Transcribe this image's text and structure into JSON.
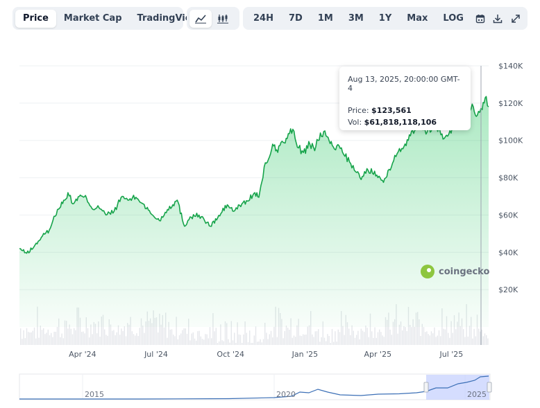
{
  "toolbar": {
    "view_tabs": [
      "Price",
      "Market Cap",
      "TradingView"
    ],
    "active_view": "Price",
    "chart_type_icons": [
      "line-chart-icon",
      "candlestick-icon"
    ],
    "ranges": [
      "24H",
      "7D",
      "1M",
      "3M",
      "1Y",
      "Max"
    ],
    "log_label": "LOG",
    "action_icons": [
      "calendar-icon",
      "download-icon",
      "fullscreen-icon"
    ]
  },
  "tooltip": {
    "date": "Aug 13, 2025, 20:00:00 GMT-4",
    "price_label": "Price:",
    "price_value": "$123,561",
    "vol_label": "Vol:",
    "vol_value": "$61,818,118,106"
  },
  "watermark": {
    "text": "coingecko"
  },
  "colors": {
    "line": "#16a34a",
    "fill": "#22c55e",
    "accent_range": "#c7d2fe",
    "navigator_line": "#3b6fb6"
  },
  "chart_data": {
    "type": "area",
    "ylim": [
      0,
      140000
    ],
    "y_ticks": [
      20000,
      40000,
      60000,
      80000,
      100000,
      120000,
      140000
    ],
    "y_tick_labels": [
      "$20K",
      "$40K",
      "$60K",
      "$80K",
      "$100K",
      "$120K",
      "$140K"
    ],
    "xlim": [
      "2024-01-14",
      "2025-08-16"
    ],
    "x_ticks": [
      "2024-04-01",
      "2024-07-01",
      "2024-10-01",
      "2025-01-01",
      "2025-04-01",
      "2025-07-01"
    ],
    "x_tick_labels": [
      "Apr '24",
      "Jul '24",
      "Oct '24",
      "Jan '25",
      "Apr '25",
      "Jul '25"
    ],
    "x": [
      "2024-01-14",
      "2024-01-23",
      "2024-02-01",
      "2024-02-10",
      "2024-02-20",
      "2024-03-01",
      "2024-03-10",
      "2024-03-14",
      "2024-03-20",
      "2024-03-28",
      "2024-04-06",
      "2024-04-14",
      "2024-04-20",
      "2024-04-30",
      "2024-05-10",
      "2024-05-20",
      "2024-05-27",
      "2024-06-06",
      "2024-06-15",
      "2024-06-24",
      "2024-07-05",
      "2024-07-15",
      "2024-07-27",
      "2024-08-05",
      "2024-08-12",
      "2024-08-23",
      "2024-09-06",
      "2024-09-15",
      "2024-09-27",
      "2024-10-05",
      "2024-10-15",
      "2024-10-22",
      "2024-10-31",
      "2024-11-05",
      "2024-11-10",
      "2024-11-13",
      "2024-11-18",
      "2024-11-22",
      "2024-11-27",
      "2024-12-05",
      "2024-12-10",
      "2024-12-17",
      "2024-12-24",
      "2024-12-30",
      "2025-01-07",
      "2025-01-13",
      "2025-01-20",
      "2025-01-27",
      "2025-02-05",
      "2025-02-15",
      "2025-02-25",
      "2025-03-03",
      "2025-03-10",
      "2025-03-20",
      "2025-03-28",
      "2025-04-08",
      "2025-04-15",
      "2025-04-22",
      "2025-05-02",
      "2025-05-10",
      "2025-05-22",
      "2025-06-01",
      "2025-06-10",
      "2025-06-22",
      "2025-07-02",
      "2025-07-14",
      "2025-07-20",
      "2025-07-28",
      "2025-08-02",
      "2025-08-08",
      "2025-08-13",
      "2025-08-16"
    ],
    "values": [
      42000,
      39500,
      43000,
      48000,
      52000,
      63000,
      68000,
      72000,
      66000,
      70000,
      69000,
      63000,
      65000,
      60000,
      62000,
      70000,
      68000,
      69500,
      66000,
      61000,
      57000,
      63000,
      68000,
      54000,
      59000,
      60000,
      54000,
      58500,
      65500,
      62000,
      66000,
      67500,
      72000,
      69500,
      80000,
      88000,
      91000,
      98000,
      95000,
      99000,
      101000,
      106000,
      96000,
      93500,
      98000,
      94500,
      104000,
      102500,
      96500,
      96000,
      88500,
      84000,
      80000,
      84000,
      83500,
      77500,
      84500,
      92000,
      95500,
      103000,
      109000,
      104500,
      109500,
      101000,
      107000,
      119500,
      117500,
      118000,
      113500,
      116500,
      123561,
      118000
    ],
    "volume": {
      "label": "volume bars (24h volume, USD)",
      "dense_pattern": true
    },
    "navigator": {
      "x_tick_labels": [
        "2015",
        "2020",
        "2025"
      ],
      "selected_range": [
        "2024-01-14",
        "2025-08-16"
      ]
    }
  }
}
